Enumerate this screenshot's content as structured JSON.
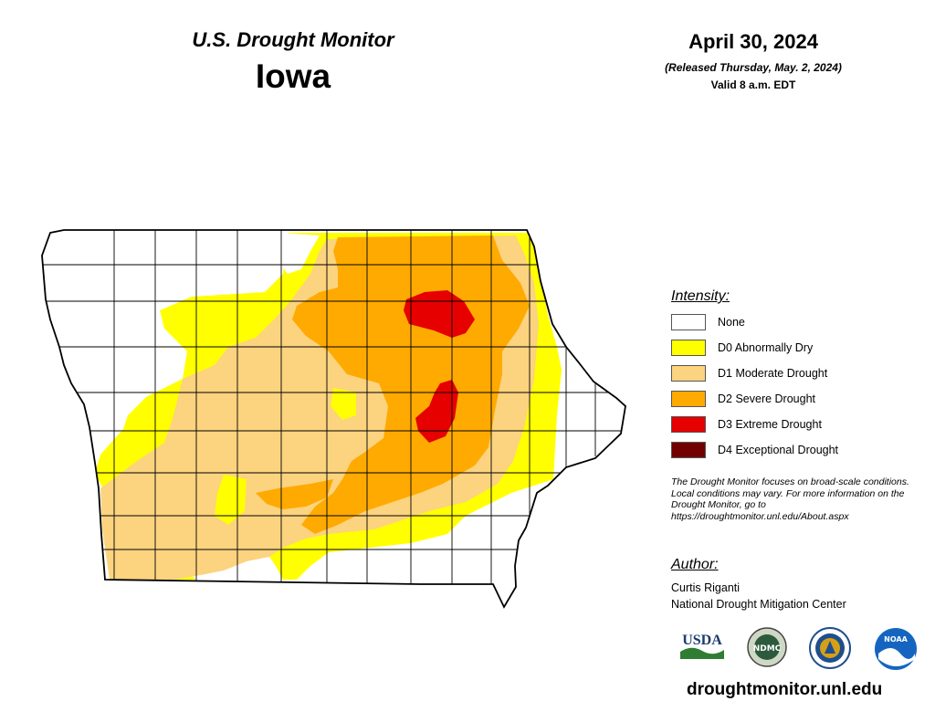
{
  "header": {
    "title": "U.S. Drought Monitor",
    "state": "Iowa",
    "date": "April 30, 2024",
    "released": "(Released Thursday, May. 2, 2024)",
    "valid": "Valid 8 a.m. EDT"
  },
  "legend": {
    "title": "Intensity:",
    "items": [
      {
        "label": "None",
        "color": "#ffffff"
      },
      {
        "label": "D0 Abnormally Dry",
        "color": "#ffff00"
      },
      {
        "label": "D1 Moderate Drought",
        "color": "#fcd37f"
      },
      {
        "label": "D2 Severe Drought",
        "color": "#ffaa00"
      },
      {
        "label": "D3 Extreme Drought",
        "color": "#e60000"
      },
      {
        "label": "D4 Exceptional Drought",
        "color": "#730000"
      }
    ]
  },
  "note": "The Drought Monitor focuses on broad-scale conditions. Local conditions may vary. For more information on the Drought Monitor, go to https://droughtmonitor.unl.edu/About.aspx",
  "author": {
    "title": "Author:",
    "name": "Curtis Riganti",
    "org": "National Drought Mitigation Center"
  },
  "logos": [
    {
      "name": "usda-logo",
      "text": "USDA"
    },
    {
      "name": "ndmc-logo",
      "text": "NDMC"
    },
    {
      "name": "doc-seal-logo",
      "text": ""
    },
    {
      "name": "noaa-logo",
      "text": "NOAA"
    }
  ],
  "footer": {
    "url": "droughtmonitor.unl.edu"
  }
}
